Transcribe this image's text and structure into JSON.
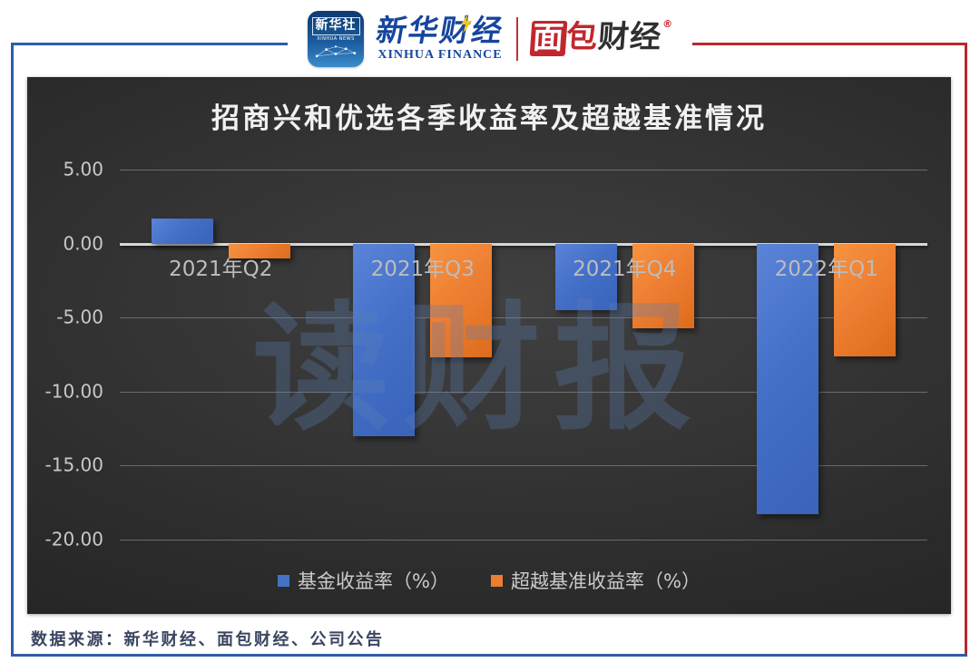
{
  "header": {
    "xinhua_news_icon": {
      "line1": "新华社",
      "line2": "XINHUA NEWS"
    },
    "xinhua_finance": {
      "cn": "新华财经",
      "en": "XINHUA FINANCE"
    },
    "bread_finance": {
      "char_mian": "面",
      "char_bao": "包",
      "cn_rest": "财经",
      "reg_mark": "®"
    }
  },
  "colors": {
    "frame_blue": "#2e5ca8",
    "frame_red": "#b8272e",
    "chart_background": "#2c2c2c",
    "title_text": "#f1f1f1",
    "axis_text": "#c8c8c8",
    "series_fund": "#4472c4",
    "series_benchmark": "#ed7d31",
    "watermark_blue": "#5b7fb5",
    "footer_text": "#3a4560"
  },
  "chart_data": {
    "type": "bar",
    "title": "招商兴和优选各季收益率及超越基准情况",
    "categories": [
      "2021年Q2",
      "2021年Q3",
      "2021年Q4",
      "2022年Q1"
    ],
    "series": [
      {
        "name": "基金收益率（%）",
        "color": "#4472c4",
        "values": [
          1.7,
          -13.0,
          -4.5,
          -18.3
        ]
      },
      {
        "name": "超越基准收益率（%）",
        "color": "#ed7d31",
        "values": [
          -1.0,
          -7.7,
          -5.7,
          -7.6
        ]
      }
    ],
    "ylim": [
      -20,
      5
    ],
    "yticks": [
      5,
      0,
      -5,
      -10,
      -15,
      -20
    ],
    "ytick_labels": [
      "5.00",
      "0.00",
      "-5.00",
      "-10.00",
      "-15.00",
      "-20.00"
    ],
    "grid": true,
    "legend_position": "bottom",
    "watermark": "读财报"
  },
  "footer": {
    "source": "数据来源：新华财经、面包财经、公司公告"
  }
}
